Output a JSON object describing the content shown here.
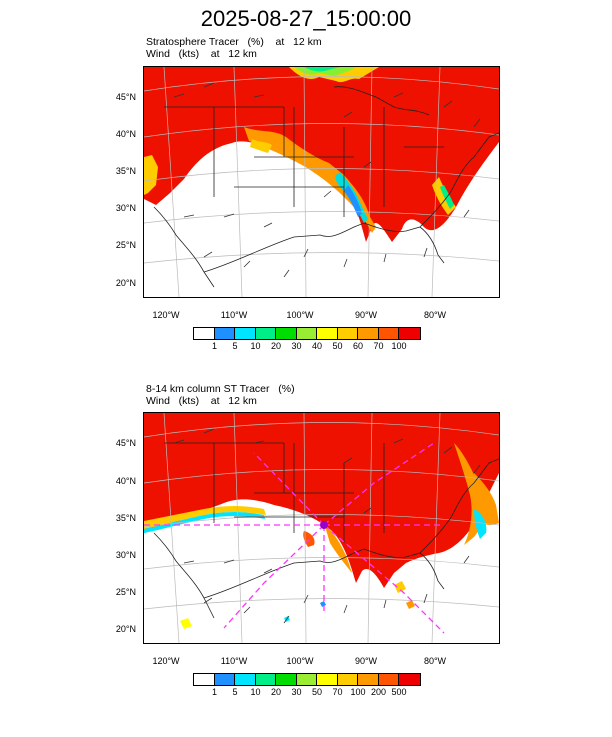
{
  "title": "2025-08-27_15:00:00",
  "panel1": {
    "header_line1": "Stratosphere Tracer   (%)    at   12 km",
    "header_line2": "Wind   (kts)    at   12 km",
    "lat_labels": [
      "45°N",
      "40°N",
      "35°N",
      "30°N",
      "25°N",
      "20°N"
    ],
    "lon_labels": [
      "120°W",
      "110°W",
      "100°W",
      "90°W",
      "80°W"
    ],
    "colorbar_labels": [
      "1",
      "5",
      "10",
      "20",
      "30",
      "40",
      "50",
      "60",
      "70",
      "100"
    ],
    "colorbar_colors": [
      "#ffffff",
      "#1e90ff",
      "#00e5ff",
      "#00ee88",
      "#00dd00",
      "#99ee33",
      "#ffff00",
      "#ffcc00",
      "#ff9900",
      "#ff5500",
      "#ee0000"
    ]
  },
  "panel2": {
    "header_line1": "8-14 km column ST Tracer   (%)",
    "header_line2": "Wind   (kts)    at   12 km",
    "lat_labels": [
      "45°N",
      "40°N",
      "35°N",
      "30°N",
      "25°N",
      "20°N"
    ],
    "lon_labels": [
      "120°W",
      "110°W",
      "100°W",
      "90°W",
      "80°W"
    ],
    "colorbar_labels": [
      "1",
      "5",
      "10",
      "20",
      "30",
      "50",
      "70",
      "100",
      "200",
      "500"
    ],
    "colorbar_colors": [
      "#ffffff",
      "#1e90ff",
      "#00e5ff",
      "#00ee88",
      "#00dd00",
      "#99ee33",
      "#ffff00",
      "#ffcc00",
      "#ff9900",
      "#ff5500",
      "#ee0000"
    ]
  }
}
